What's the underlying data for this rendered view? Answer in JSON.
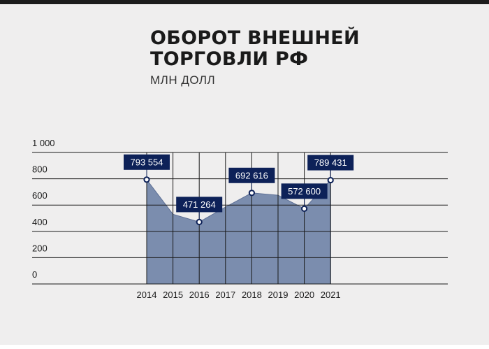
{
  "title_lines": [
    "ОБОРОТ ВНЕШНЕЙ",
    "ТОРГОВЛИ РФ"
  ],
  "subtitle": "МЛН ДОЛЛ",
  "colors": {
    "area_fill": "#7b8dae",
    "area_stroke": "#5e7096",
    "label_bg": "#0d2158",
    "label_text": "#ffffff",
    "grid": "#1a1a1a",
    "background": "#efeeee"
  },
  "chart_data": {
    "type": "area",
    "title": "ОБОРОТ ВНЕШНЕЙ ТОРГОВЛИ РФ",
    "ylabel": "МЛН ДОЛЛ",
    "xlabel": "",
    "x": [
      2014,
      2015,
      2016,
      2017,
      2018,
      2019,
      2020,
      2021
    ],
    "ylim": [
      0,
      1000
    ],
    "y_tick_labels": [
      "0",
      "200",
      "400",
      "600",
      "800",
      "1 000"
    ],
    "grid": true,
    "series": [
      {
        "values": [
          793554,
          530000,
          471264,
          585000,
          692616,
          675000,
          572600,
          789431
        ]
      }
    ],
    "data_labels": [
      {
        "x": 2014,
        "value": 793554,
        "text": "793 554"
      },
      {
        "x": 2016,
        "value": 471264,
        "text": "471 264"
      },
      {
        "x": 2018,
        "value": 692616,
        "text": "692 616"
      },
      {
        "x": 2020,
        "value": 572600,
        "text": "572 600"
      },
      {
        "x": 2021,
        "value": 789431,
        "text": "789 431"
      }
    ]
  }
}
